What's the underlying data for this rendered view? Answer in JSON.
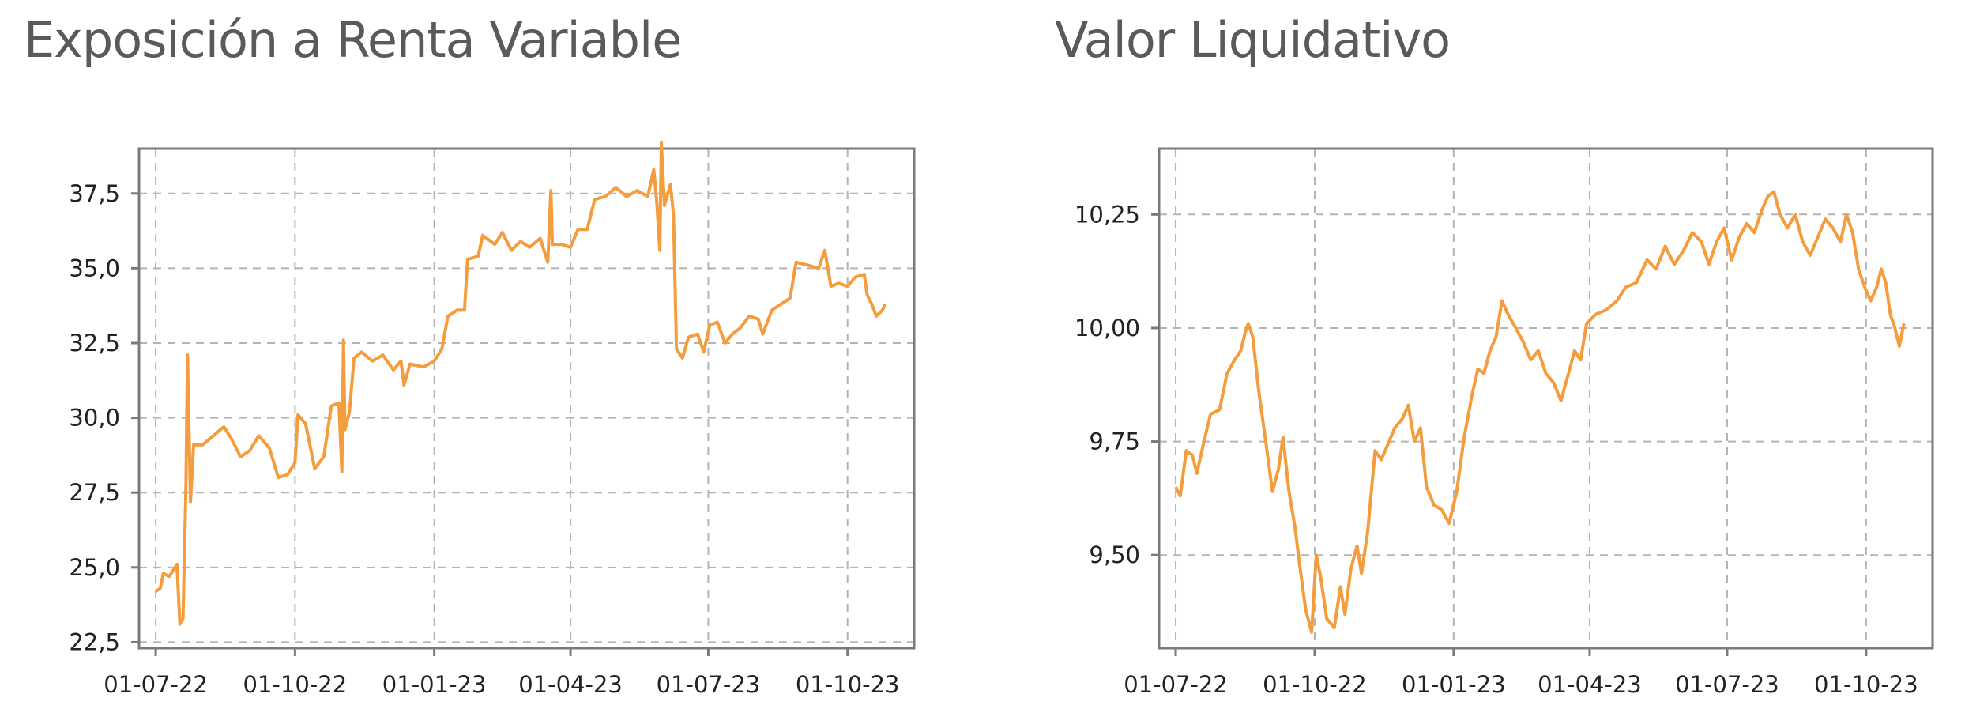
{
  "colors": {
    "series": "#F59C3C",
    "grid": "#b4b4b4",
    "axis": "#7a7a7a"
  },
  "chart_data": [
    {
      "type": "line",
      "title": "Exposición a Renta Variable",
      "xlabel": "",
      "ylabel": "",
      "grid": true,
      "x_range": [
        "2022-06-20",
        "2023-11-14"
      ],
      "ylim": [
        22.3,
        39.0
      ],
      "y_ticks": [
        "22,5",
        "25,0",
        "27,5",
        "30,0",
        "32,5",
        "35,0",
        "37,5"
      ],
      "y_tick_values": [
        22.5,
        25.0,
        27.5,
        30.0,
        32.5,
        35.0,
        37.5
      ],
      "x_ticks": [
        "01-07-22",
        "01-10-22",
        "01-01-23",
        "01-04-23",
        "01-07-23",
        "01-10-23"
      ],
      "x_tick_dates": [
        "2022-07-01",
        "2022-10-01",
        "2023-01-01",
        "2023-04-01",
        "2023-07-01",
        "2023-10-01"
      ],
      "series": [
        {
          "values": [
            [
              "2022-07-01",
              24.2
            ],
            [
              "2022-07-04",
              24.3
            ],
            [
              "2022-07-06",
              24.8
            ],
            [
              "2022-07-10",
              24.7
            ],
            [
              "2022-07-15",
              25.1
            ],
            [
              "2022-07-17",
              23.1
            ],
            [
              "2022-07-19",
              23.3
            ],
            [
              "2022-07-21",
              27.8
            ],
            [
              "2022-07-22",
              32.1
            ],
            [
              "2022-07-24",
              27.2
            ],
            [
              "2022-07-26",
              29.1
            ],
            [
              "2022-08-01",
              29.1
            ],
            [
              "2022-08-08",
              29.4
            ],
            [
              "2022-08-15",
              29.7
            ],
            [
              "2022-08-20",
              29.3
            ],
            [
              "2022-08-26",
              28.7
            ],
            [
              "2022-09-01",
              28.9
            ],
            [
              "2022-09-07",
              29.4
            ],
            [
              "2022-09-14",
              29.0
            ],
            [
              "2022-09-20",
              28.0
            ],
            [
              "2022-09-26",
              28.1
            ],
            [
              "2022-10-01",
              28.5
            ],
            [
              "2022-10-03",
              30.1
            ],
            [
              "2022-10-08",
              29.8
            ],
            [
              "2022-10-14",
              28.3
            ],
            [
              "2022-10-20",
              28.7
            ],
            [
              "2022-10-25",
              30.4
            ],
            [
              "2022-10-30",
              30.5
            ],
            [
              "2022-11-01",
              28.2
            ],
            [
              "2022-11-02",
              32.6
            ],
            [
              "2022-11-03",
              29.6
            ],
            [
              "2022-11-06",
              30.2
            ],
            [
              "2022-11-09",
              32.0
            ],
            [
              "2022-11-14",
              32.2
            ],
            [
              "2022-11-21",
              31.9
            ],
            [
              "2022-11-28",
              32.1
            ],
            [
              "2022-12-05",
              31.6
            ],
            [
              "2022-12-10",
              31.9
            ],
            [
              "2022-12-12",
              31.1
            ],
            [
              "2022-12-16",
              31.8
            ],
            [
              "2022-12-25",
              31.7
            ],
            [
              "2023-01-01",
              31.9
            ],
            [
              "2023-01-06",
              32.3
            ],
            [
              "2023-01-10",
              33.4
            ],
            [
              "2023-01-16",
              33.6
            ],
            [
              "2023-01-21",
              33.6
            ],
            [
              "2023-01-23",
              35.3
            ],
            [
              "2023-01-30",
              35.4
            ],
            [
              "2023-02-02",
              36.1
            ],
            [
              "2023-02-10",
              35.8
            ],
            [
              "2023-02-15",
              36.2
            ],
            [
              "2023-02-21",
              35.6
            ],
            [
              "2023-02-27",
              35.9
            ],
            [
              "2023-03-05",
              35.7
            ],
            [
              "2023-03-12",
              36.0
            ],
            [
              "2023-03-17",
              35.2
            ],
            [
              "2023-03-19",
              37.6
            ],
            [
              "2023-03-20",
              35.8
            ],
            [
              "2023-03-26",
              35.8
            ],
            [
              "2023-04-01",
              35.7
            ],
            [
              "2023-04-06",
              36.3
            ],
            [
              "2023-04-12",
              36.3
            ],
            [
              "2023-04-17",
              37.3
            ],
            [
              "2023-04-24",
              37.4
            ],
            [
              "2023-05-01",
              37.7
            ],
            [
              "2023-05-08",
              37.4
            ],
            [
              "2023-05-15",
              37.6
            ],
            [
              "2023-05-22",
              37.4
            ],
            [
              "2023-05-26",
              38.3
            ],
            [
              "2023-05-28",
              37.2
            ],
            [
              "2023-05-30",
              35.6
            ],
            [
              "2023-05-31",
              39.2
            ],
            [
              "2023-06-02",
              37.1
            ],
            [
              "2023-06-06",
              37.8
            ],
            [
              "2023-06-08",
              36.8
            ],
            [
              "2023-06-10",
              32.3
            ],
            [
              "2023-06-14",
              32.0
            ],
            [
              "2023-06-18",
              32.7
            ],
            [
              "2023-06-24",
              32.8
            ],
            [
              "2023-06-28",
              32.2
            ],
            [
              "2023-07-02",
              33.1
            ],
            [
              "2023-07-07",
              33.2
            ],
            [
              "2023-07-12",
              32.5
            ],
            [
              "2023-07-17",
              32.8
            ],
            [
              "2023-07-22",
              33.0
            ],
            [
              "2023-07-28",
              33.4
            ],
            [
              "2023-08-03",
              33.3
            ],
            [
              "2023-08-06",
              32.8
            ],
            [
              "2023-08-12",
              33.6
            ],
            [
              "2023-08-18",
              33.8
            ],
            [
              "2023-08-24",
              34.0
            ],
            [
              "2023-08-28",
              35.2
            ],
            [
              "2023-09-05",
              35.1
            ],
            [
              "2023-09-12",
              35.0
            ],
            [
              "2023-09-16",
              35.6
            ],
            [
              "2023-09-20",
              34.4
            ],
            [
              "2023-09-25",
              34.5
            ],
            [
              "2023-10-01",
              34.4
            ],
            [
              "2023-10-06",
              34.7
            ],
            [
              "2023-10-12",
              34.8
            ],
            [
              "2023-10-14",
              34.1
            ],
            [
              "2023-10-17",
              33.8
            ],
            [
              "2023-10-20",
              33.4
            ],
            [
              "2023-10-24",
              33.6
            ],
            [
              "2023-10-26",
              33.8
            ]
          ]
        }
      ]
    },
    {
      "type": "line",
      "title": "Valor Liquidativo",
      "xlabel": "",
      "ylabel": "",
      "grid": true,
      "x_range": [
        "2022-06-20",
        "2023-11-14"
      ],
      "ylim": [
        9.295,
        10.395
      ],
      "y_ticks": [
        "9,50",
        "9,75",
        "10,00",
        "10,25"
      ],
      "y_tick_values": [
        9.5,
        9.75,
        10.0,
        10.25
      ],
      "x_ticks": [
        "01-07-22",
        "01-10-22",
        "01-01-23",
        "01-04-23",
        "01-07-23",
        "01-10-23"
      ],
      "x_tick_dates": [
        "2022-07-01",
        "2022-10-01",
        "2023-01-01",
        "2023-04-01",
        "2023-07-01",
        "2023-10-01"
      ],
      "series": [
        {
          "values": [
            [
              "2022-07-01",
              9.65
            ],
            [
              "2022-07-04",
              9.63
            ],
            [
              "2022-07-08",
              9.73
            ],
            [
              "2022-07-12",
              9.72
            ],
            [
              "2022-07-15",
              9.68
            ],
            [
              "2022-07-19",
              9.74
            ],
            [
              "2022-07-24",
              9.81
            ],
            [
              "2022-07-30",
              9.82
            ],
            [
              "2022-08-04",
              9.9
            ],
            [
              "2022-08-09",
              9.93
            ],
            [
              "2022-08-13",
              9.95
            ],
            [
              "2022-08-16",
              9.99
            ],
            [
              "2022-08-18",
              10.01
            ],
            [
              "2022-08-21",
              9.98
            ],
            [
              "2022-08-25",
              9.86
            ],
            [
              "2022-08-30",
              9.74
            ],
            [
              "2022-09-03",
              9.64
            ],
            [
              "2022-09-07",
              9.69
            ],
            [
              "2022-09-10",
              9.76
            ],
            [
              "2022-09-14",
              9.64
            ],
            [
              "2022-09-18",
              9.56
            ],
            [
              "2022-09-21",
              9.48
            ],
            [
              "2022-09-25",
              9.38
            ],
            [
              "2022-09-29",
              9.33
            ],
            [
              "2022-10-02",
              9.5
            ],
            [
              "2022-10-05",
              9.45
            ],
            [
              "2022-10-09",
              9.36
            ],
            [
              "2022-10-14",
              9.34
            ],
            [
              "2022-10-18",
              9.43
            ],
            [
              "2022-10-21",
              9.37
            ],
            [
              "2022-10-25",
              9.47
            ],
            [
              "2022-10-29",
              9.52
            ],
            [
              "2022-11-01",
              9.46
            ],
            [
              "2022-11-05",
              9.55
            ],
            [
              "2022-11-10",
              9.73
            ],
            [
              "2022-11-14",
              9.71
            ],
            [
              "2022-11-18",
              9.74
            ],
            [
              "2022-11-23",
              9.78
            ],
            [
              "2022-11-28",
              9.8
            ],
            [
              "2022-12-02",
              9.83
            ],
            [
              "2022-12-06",
              9.75
            ],
            [
              "2022-12-10",
              9.78
            ],
            [
              "2022-12-14",
              9.65
            ],
            [
              "2022-12-19",
              9.61
            ],
            [
              "2022-12-24",
              9.6
            ],
            [
              "2022-12-29",
              9.57
            ],
            [
              "2023-01-03",
              9.64
            ],
            [
              "2023-01-08",
              9.76
            ],
            [
              "2023-01-13",
              9.85
            ],
            [
              "2023-01-17",
              9.91
            ],
            [
              "2023-01-21",
              9.9
            ],
            [
              "2023-01-25",
              9.95
            ],
            [
              "2023-01-29",
              9.98
            ],
            [
              "2023-02-02",
              10.06
            ],
            [
              "2023-02-06",
              10.03
            ],
            [
              "2023-02-11",
              10.0
            ],
            [
              "2023-02-16",
              9.97
            ],
            [
              "2023-02-21",
              9.93
            ],
            [
              "2023-02-26",
              9.95
            ],
            [
              "2023-03-03",
              9.9
            ],
            [
              "2023-03-08",
              9.88
            ],
            [
              "2023-03-13",
              9.84
            ],
            [
              "2023-03-18",
              9.9
            ],
            [
              "2023-03-22",
              9.95
            ],
            [
              "2023-03-26",
              9.93
            ],
            [
              "2023-03-30",
              10.01
            ],
            [
              "2023-04-05",
              10.03
            ],
            [
              "2023-04-12",
              10.04
            ],
            [
              "2023-04-19",
              10.06
            ],
            [
              "2023-04-25",
              10.09
            ],
            [
              "2023-05-02",
              10.1
            ],
            [
              "2023-05-09",
              10.15
            ],
            [
              "2023-05-15",
              10.13
            ],
            [
              "2023-05-21",
              10.18
            ],
            [
              "2023-05-27",
              10.14
            ],
            [
              "2023-06-02",
              10.17
            ],
            [
              "2023-06-08",
              10.21
            ],
            [
              "2023-06-14",
              10.19
            ],
            [
              "2023-06-19",
              10.14
            ],
            [
              "2023-06-24",
              10.19
            ],
            [
              "2023-06-29",
              10.22
            ],
            [
              "2023-07-04",
              10.15
            ],
            [
              "2023-07-09",
              10.2
            ],
            [
              "2023-07-14",
              10.23
            ],
            [
              "2023-07-19",
              10.21
            ],
            [
              "2023-07-24",
              10.26
            ],
            [
              "2023-07-28",
              10.29
            ],
            [
              "2023-08-01",
              10.3
            ],
            [
              "2023-08-05",
              10.25
            ],
            [
              "2023-08-10",
              10.22
            ],
            [
              "2023-08-15",
              10.25
            ],
            [
              "2023-08-20",
              10.19
            ],
            [
              "2023-08-25",
              10.16
            ],
            [
              "2023-08-30",
              10.2
            ],
            [
              "2023-09-04",
              10.24
            ],
            [
              "2023-09-09",
              10.22
            ],
            [
              "2023-09-14",
              10.19
            ],
            [
              "2023-09-18",
              10.25
            ],
            [
              "2023-09-22",
              10.21
            ],
            [
              "2023-09-26",
              10.13
            ],
            [
              "2023-09-30",
              10.09
            ],
            [
              "2023-10-04",
              10.06
            ],
            [
              "2023-10-08",
              10.09
            ],
            [
              "2023-10-11",
              10.13
            ],
            [
              "2023-10-14",
              10.1
            ],
            [
              "2023-10-17",
              10.03
            ],
            [
              "2023-10-20",
              10.0
            ],
            [
              "2023-10-23",
              9.96
            ],
            [
              "2023-10-26",
              10.01
            ]
          ]
        }
      ]
    }
  ]
}
